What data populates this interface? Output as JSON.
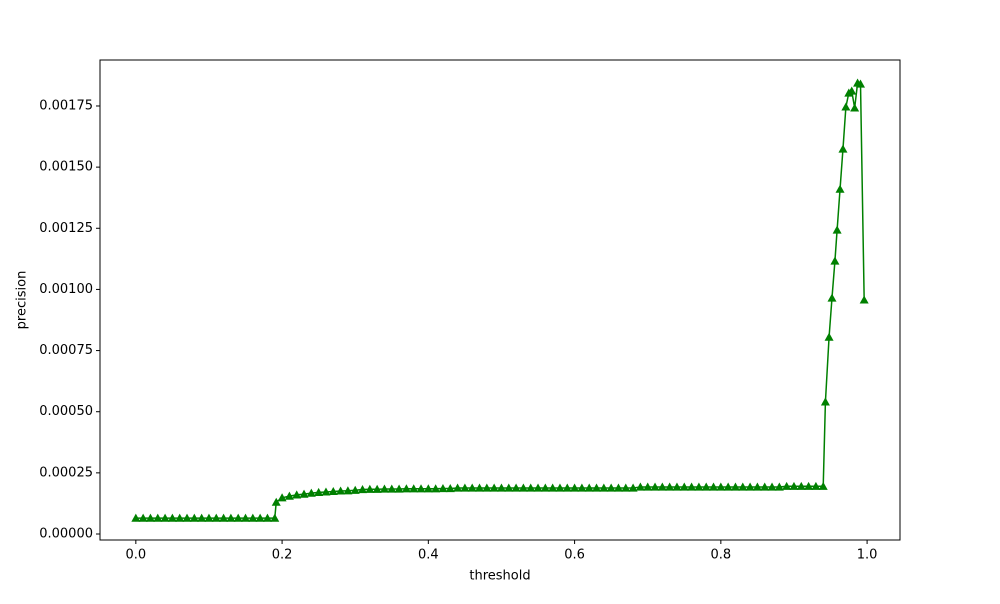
{
  "chart_data": {
    "type": "line",
    "xlabel": "threshold",
    "ylabel": "precision",
    "color": "green",
    "marker": "triangle",
    "grid": false,
    "xlim": [
      -0.049,
      1.045
    ],
    "ylim": [
      -2.45e-05,
      0.001938
    ],
    "xticks": [
      {
        "value": 0,
        "label": "0.0"
      },
      {
        "value": 0.2,
        "label": "0.2"
      },
      {
        "value": 0.4,
        "label": "0.4"
      },
      {
        "value": 0.6,
        "label": "0.6"
      },
      {
        "value": 0.8,
        "label": "0.8"
      },
      {
        "value": 1,
        "label": "1.0"
      }
    ],
    "yticks": [
      {
        "value": 0,
        "label": "0.00000"
      },
      {
        "value": 0.00025,
        "label": "0.00025"
      },
      {
        "value": 0.0005,
        "label": "0.00050"
      },
      {
        "value": 0.00075,
        "label": "0.00075"
      },
      {
        "value": 0.001,
        "label": "0.00100"
      },
      {
        "value": 0.00125,
        "label": "0.00125"
      },
      {
        "value": 0.0015,
        "label": "0.00150"
      },
      {
        "value": 0.00175,
        "label": "0.00175"
      }
    ],
    "x": [
      0,
      0.01,
      0.02,
      0.03,
      0.04,
      0.05,
      0.06,
      0.07,
      0.08,
      0.09,
      0.1,
      0.11,
      0.12,
      0.13,
      0.14,
      0.15,
      0.16,
      0.17,
      0.18,
      0.19,
      0.192,
      0.2,
      0.21,
      0.22,
      0.23,
      0.24,
      0.25,
      0.26,
      0.27,
      0.28,
      0.29,
      0.3,
      0.31,
      0.32,
      0.33,
      0.34,
      0.35,
      0.36,
      0.37,
      0.38,
      0.39,
      0.4,
      0.41,
      0.42,
      0.43,
      0.44,
      0.45,
      0.46,
      0.47,
      0.48,
      0.49,
      0.5,
      0.51,
      0.52,
      0.53,
      0.54,
      0.55,
      0.56,
      0.57,
      0.58,
      0.59,
      0.6,
      0.61,
      0.62,
      0.63,
      0.64,
      0.65,
      0.66,
      0.67,
      0.68,
      0.69,
      0.7,
      0.71,
      0.72,
      0.73,
      0.74,
      0.75,
      0.76,
      0.77,
      0.78,
      0.79,
      0.8,
      0.81,
      0.82,
      0.83,
      0.84,
      0.85,
      0.86,
      0.87,
      0.88,
      0.89,
      0.9,
      0.91,
      0.92,
      0.93,
      0.94,
      0.943,
      0.948,
      0.952,
      0.956,
      0.959,
      0.963,
      0.967,
      0.971,
      0.975,
      0.979,
      0.983,
      0.987,
      0.991,
      0.996
    ],
    "values": [
      6.5e-05,
      6.5e-05,
      6.5e-05,
      6.5e-05,
      6.5e-05,
      6.5e-05,
      6.5e-05,
      6.5e-05,
      6.5e-05,
      6.5e-05,
      6.5e-05,
      6.5e-05,
      6.5e-05,
      6.5e-05,
      6.5e-05,
      6.5e-05,
      6.5e-05,
      6.5e-05,
      6.5e-05,
      6.5e-05,
      0.00013,
      0.000148,
      0.000155,
      0.00016,
      0.000163,
      0.000167,
      0.00017,
      0.000172,
      0.000174,
      0.000176,
      0.000177,
      0.000179,
      0.000182,
      0.000183,
      0.000183,
      0.000184,
      0.000184,
      0.000184,
      0.000185,
      0.000185,
      0.000185,
      0.000185,
      0.000185,
      0.000186,
      0.000186,
      0.000188,
      0.000188,
      0.000188,
      0.000188,
      0.000188,
      0.000188,
      0.000188,
      0.000188,
      0.000188,
      0.000188,
      0.000188,
      0.000188,
      0.000188,
      0.000188,
      0.000188,
      0.000188,
      0.000188,
      0.000188,
      0.000188,
      0.000188,
      0.000188,
      0.000188,
      0.000188,
      0.000188,
      0.000188,
      0.000192,
      0.000192,
      0.000192,
      0.000192,
      0.000192,
      0.000192,
      0.000192,
      0.000192,
      0.000192,
      0.000192,
      0.000192,
      0.000192,
      0.000192,
      0.000192,
      0.000192,
      0.000192,
      0.000192,
      0.000192,
      0.000192,
      0.000192,
      0.000195,
      0.000195,
      0.000195,
      0.000195,
      0.000195,
      0.000195,
      0.00054,
      0.000805,
      0.000965,
      0.001116,
      0.001243,
      0.00141,
      0.001574,
      0.001746,
      0.001803,
      0.001811,
      0.001742,
      0.001844,
      0.00184,
      0.000957
    ]
  }
}
